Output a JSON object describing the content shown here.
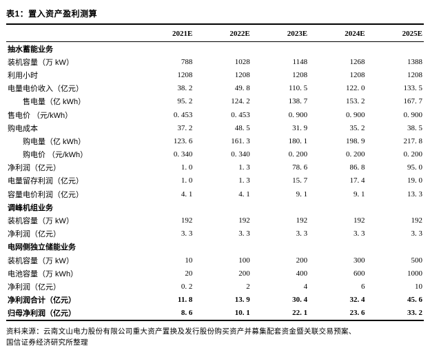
{
  "title": "表1：置入资产盈利测算",
  "columns": [
    "2021E",
    "2022E",
    "2023E",
    "2024E",
    "2025E"
  ],
  "rows": [
    {
      "label": "抽水蓄能业务",
      "type": "section",
      "indent": false,
      "values": [
        "",
        "",
        "",
        "",
        ""
      ]
    },
    {
      "label": "装机容量（万 kW）",
      "type": "data",
      "indent": false,
      "values": [
        "788",
        "1028",
        "1148",
        "1268",
        "1388"
      ]
    },
    {
      "label": "利用小时",
      "type": "data",
      "indent": false,
      "values": [
        "1208",
        "1208",
        "1208",
        "1208",
        "1208"
      ]
    },
    {
      "label": "电量电价收入（亿元）",
      "type": "data",
      "indent": false,
      "values": [
        "38. 2",
        "49. 8",
        "110. 5",
        "122. 0",
        "133. 5"
      ]
    },
    {
      "label": "售电量（亿 kWh）",
      "type": "data",
      "indent": true,
      "values": [
        "95. 2",
        "124. 2",
        "138. 7",
        "153. 2",
        "167. 7"
      ]
    },
    {
      "label": "售电价 （元/kWh）",
      "type": "data",
      "indent": false,
      "values": [
        "0. 453",
        "0. 453",
        "0. 900",
        "0. 900",
        "0. 900"
      ]
    },
    {
      "label": "购电成本",
      "type": "data",
      "indent": false,
      "values": [
        "37. 2",
        "48. 5",
        "31. 9",
        "35. 2",
        "38. 5"
      ]
    },
    {
      "label": "购电量（亿 kWh）",
      "type": "data",
      "indent": true,
      "values": [
        "123. 6",
        "161. 3",
        "180. 1",
        "198. 9",
        "217. 8"
      ]
    },
    {
      "label": "购电价 （元/kWh）",
      "type": "data",
      "indent": true,
      "values": [
        "0. 340",
        "0. 340",
        "0. 200",
        "0. 200",
        "0. 200"
      ]
    },
    {
      "label": "净利润（亿元）",
      "type": "data",
      "indent": false,
      "values": [
        "1. 0",
        "1. 3",
        "78. 6",
        "86. 8",
        "95. 0"
      ]
    },
    {
      "label": "电量留存利润（亿元）",
      "type": "data",
      "indent": false,
      "values": [
        "1. 0",
        "1. 3",
        "15. 7",
        "17. 4",
        "19. 0"
      ]
    },
    {
      "label": "容量电价利润（亿元）",
      "type": "data",
      "indent": false,
      "values": [
        "4. 1",
        "4. 1",
        "9. 1",
        "9. 1",
        "13. 3"
      ]
    },
    {
      "label": "调峰机组业务",
      "type": "section",
      "indent": false,
      "values": [
        "",
        "",
        "",
        "",
        ""
      ]
    },
    {
      "label": "装机容量（万 kW）",
      "type": "data",
      "indent": false,
      "values": [
        "192",
        "192",
        "192",
        "192",
        "192"
      ]
    },
    {
      "label": "净利润（亿元）",
      "type": "data",
      "indent": false,
      "values": [
        "3. 3",
        "3. 3",
        "3. 3",
        "3. 3",
        "3. 3"
      ]
    },
    {
      "label": "电网侧独立储能业务",
      "type": "section",
      "indent": false,
      "values": [
        "",
        "",
        "",
        "",
        ""
      ]
    },
    {
      "label": "装机容量（万 kW）",
      "type": "data",
      "indent": false,
      "values": [
        "10",
        "100",
        "200",
        "300",
        "500"
      ]
    },
    {
      "label": "电池容量（万 kWh）",
      "type": "data",
      "indent": false,
      "values": [
        "20",
        "200",
        "400",
        "600",
        "1000"
      ]
    },
    {
      "label": "净利润（亿元）",
      "type": "data",
      "indent": false,
      "values": [
        "0. 2",
        "2",
        "4",
        "6",
        "10"
      ]
    },
    {
      "label": "净利润合计（亿元）",
      "type": "total",
      "indent": false,
      "values": [
        "11. 8",
        "13. 9",
        "30. 4",
        "32. 4",
        "45. 6"
      ]
    },
    {
      "label": "归母净利润（亿元）",
      "type": "total",
      "indent": false,
      "values": [
        "8. 6",
        "10. 1",
        "22. 1",
        "23. 6",
        "33. 2"
      ]
    }
  ],
  "source_line1": "资料来源：云南文山电力股份有限公司重大资产置换及发行股份购买资产并募集配套资金暨关联交易预案、",
  "source_line2": "国信证券经济研究所整理"
}
